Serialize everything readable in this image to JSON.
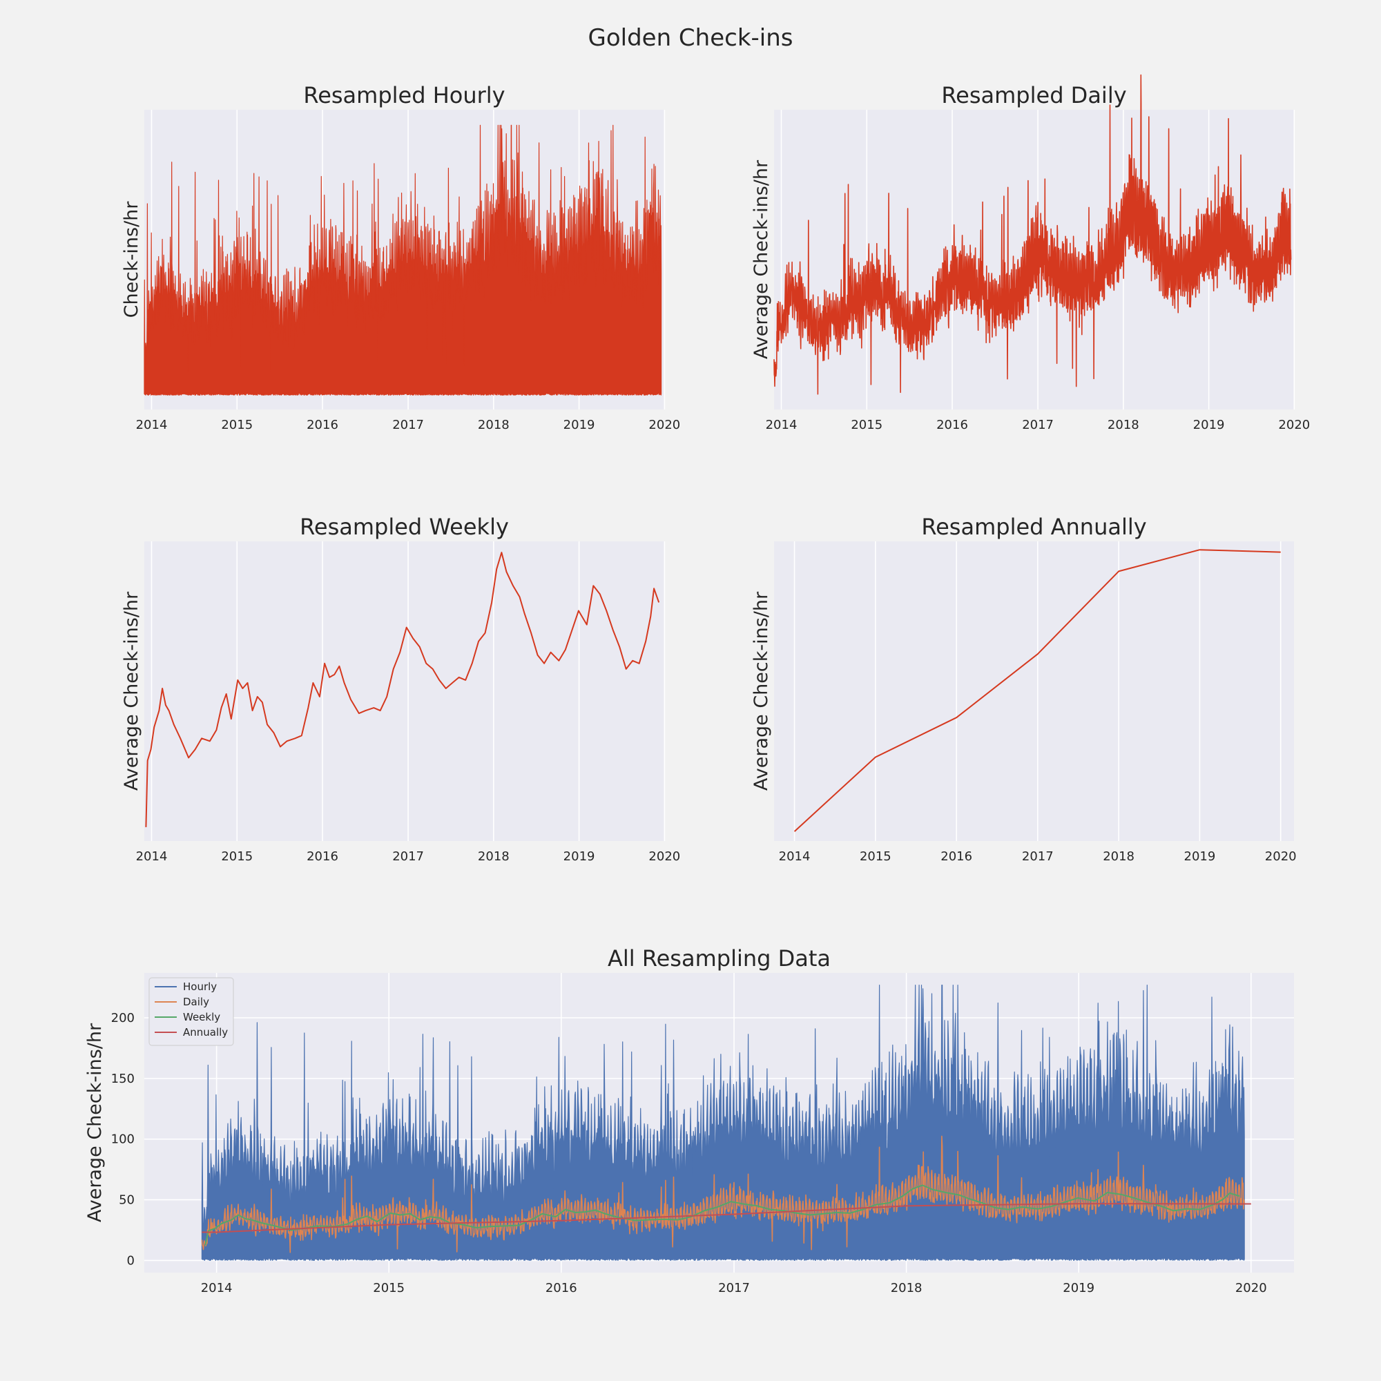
{
  "figure": {
    "title": "Golden Check-ins"
  },
  "colors": {
    "single_series": "#d5391f",
    "hourly": "#4c72b0",
    "daily": "#dd8452",
    "weekly": "#55a868",
    "annually": "#c44e52",
    "axes_bg": "#eaeaf2",
    "grid": "#ffffff"
  },
  "chart_data": [
    {
      "id": "hourly",
      "type": "line",
      "title": "Resampled Hourly",
      "ylabel": "Check-ins/hr",
      "xlabel": "",
      "x_range": [
        "2013-12-01",
        "2019-12-31"
      ],
      "x_ticks": [
        "2014",
        "2015",
        "2016",
        "2017",
        "2018",
        "2019",
        "2020"
      ],
      "y_tick_labels": "hidden",
      "ylim": [
        -12,
        240
      ],
      "grid": true,
      "series": [
        {
          "resample": "H",
          "start": "2013-12-01",
          "end": "2019-12-18",
          "approx_max": 227,
          "approx_min": 0
        }
      ]
    },
    {
      "id": "daily",
      "type": "line",
      "title": "Resampled Daily",
      "ylabel": "Average Check-ins/hr",
      "xlabel": "",
      "x_range": [
        "2013-12-01",
        "2019-12-31"
      ],
      "x_ticks": [
        "2014",
        "2015",
        "2016",
        "2017",
        "2018",
        "2019",
        "2020"
      ],
      "y_tick_labels": "hidden",
      "ylim": [
        2,
        92
      ],
      "grid": true,
      "series": [
        {
          "resample": "D",
          "start": "2013-12-01",
          "end": "2019-12-18"
        }
      ]
    },
    {
      "id": "weekly",
      "type": "line",
      "title": "Resampled Weekly",
      "ylabel": "Average Check-ins/hr",
      "xlabel": "",
      "x_range": [
        "2013-12-01",
        "2019-12-31"
      ],
      "x_ticks": [
        "2014",
        "2015",
        "2016",
        "2017",
        "2018",
        "2019",
        "2020"
      ],
      "y_tick_labels": "hidden",
      "ylim": [
        10,
        64
      ],
      "grid": true,
      "series": [
        {
          "resample": "W",
          "points": [
            [
              "2013-12-08",
              12.5
            ],
            [
              "2013-12-15",
              24.5
            ],
            [
              "2013-12-29",
              26.5
            ],
            [
              "2014-01-12",
              30.5
            ],
            [
              "2014-02-02",
              33.5
            ],
            [
              "2014-02-16",
              37.5
            ],
            [
              "2014-03-02",
              34.5
            ],
            [
              "2014-03-16",
              33.5
            ],
            [
              "2014-04-06",
              31
            ],
            [
              "2014-05-04",
              28.5
            ],
            [
              "2014-06-08",
              25
            ],
            [
              "2014-07-06",
              26.5
            ],
            [
              "2014-08-03",
              28.5
            ],
            [
              "2014-09-07",
              28
            ],
            [
              "2014-10-05",
              30
            ],
            [
              "2014-10-26",
              34
            ],
            [
              "2014-11-16",
              36.5
            ],
            [
              "2014-12-07",
              32
            ],
            [
              "2015-01-04",
              39
            ],
            [
              "2015-01-25",
              37.5
            ],
            [
              "2015-02-15",
              38.5
            ],
            [
              "2015-03-08",
              33.5
            ],
            [
              "2015-03-29",
              36
            ],
            [
              "2015-04-19",
              35
            ],
            [
              "2015-05-10",
              31
            ],
            [
              "2015-06-07",
              29.5
            ],
            [
              "2015-07-05",
              27
            ],
            [
              "2015-08-02",
              28
            ],
            [
              "2015-09-06",
              28.5
            ],
            [
              "2015-10-04",
              29
            ],
            [
              "2015-11-01",
              34
            ],
            [
              "2015-11-22",
              38.5
            ],
            [
              "2015-12-20",
              36
            ],
            [
              "2016-01-10",
              42
            ],
            [
              "2016-01-31",
              39.5
            ],
            [
              "2016-02-21",
              40
            ],
            [
              "2016-03-13",
              41.5
            ],
            [
              "2016-04-03",
              38.5
            ],
            [
              "2016-05-01",
              35.5
            ],
            [
              "2016-06-05",
              33
            ],
            [
              "2016-07-03",
              33.5
            ],
            [
              "2016-08-07",
              34
            ],
            [
              "2016-09-04",
              33.5
            ],
            [
              "2016-10-02",
              36
            ],
            [
              "2016-10-30",
              41
            ],
            [
              "2016-11-27",
              44
            ],
            [
              "2016-12-25",
              48.5
            ],
            [
              "2017-01-22",
              46.5
            ],
            [
              "2017-02-19",
              45
            ],
            [
              "2017-03-19",
              42
            ],
            [
              "2017-04-16",
              41
            ],
            [
              "2017-05-14",
              39
            ],
            [
              "2017-06-11",
              37.5
            ],
            [
              "2017-07-09",
              38.5
            ],
            [
              "2017-08-06",
              39.5
            ],
            [
              "2017-09-03",
              39
            ],
            [
              "2017-10-01",
              42
            ],
            [
              "2017-10-29",
              46
            ],
            [
              "2017-11-26",
              47.5
            ],
            [
              "2017-12-24",
              53
            ],
            [
              "2018-01-14",
              59
            ],
            [
              "2018-02-04",
              62
            ],
            [
              "2018-02-25",
              58.5
            ],
            [
              "2018-03-25",
              56
            ],
            [
              "2018-04-22",
              54
            ],
            [
              "2018-05-13",
              51
            ],
            [
              "2018-06-10",
              47.5
            ],
            [
              "2018-07-08",
              43.5
            ],
            [
              "2018-08-05",
              42
            ],
            [
              "2018-09-02",
              44
            ],
            [
              "2018-10-07",
              42.5
            ],
            [
              "2018-11-04",
              44.5
            ],
            [
              "2018-12-02",
              48
            ],
            [
              "2018-12-30",
              51.5
            ],
            [
              "2019-02-03",
              49
            ],
            [
              "2019-03-03",
              56
            ],
            [
              "2019-03-31",
              54.5
            ],
            [
              "2019-04-28",
              51.5
            ],
            [
              "2019-05-26",
              48
            ],
            [
              "2019-06-23",
              45
            ],
            [
              "2019-07-21",
              41
            ],
            [
              "2019-08-18",
              42.5
            ],
            [
              "2019-09-15",
              42
            ],
            [
              "2019-10-13",
              46
            ],
            [
              "2019-11-03",
              50.5
            ],
            [
              "2019-11-17",
              55.5
            ],
            [
              "2019-12-08",
              53
            ]
          ]
        }
      ]
    },
    {
      "id": "annually",
      "type": "line",
      "title": "Resampled Annually",
      "ylabel": "Average Check-ins/hr",
      "xlabel": "",
      "x_range": [
        "2013-10-01",
        "2020-03-01"
      ],
      "x_ticks": [
        "2014",
        "2015",
        "2016",
        "2017",
        "2018",
        "2019",
        "2020"
      ],
      "y_tick_labels": "hidden",
      "ylim": [
        22.5,
        47.5
      ],
      "grid": true,
      "series": [
        {
          "resample": "A",
          "points": [
            [
              "2014-01-01",
              23.3
            ],
            [
              "2015-01-01",
              29.5
            ],
            [
              "2016-01-01",
              32.8
            ],
            [
              "2017-01-01",
              38.1
            ],
            [
              "2018-01-01",
              45.0
            ],
            [
              "2019-01-01",
              46.8
            ],
            [
              "2020-01-01",
              46.6
            ]
          ]
        }
      ]
    },
    {
      "id": "all",
      "type": "line",
      "title": "All Resampling Data",
      "ylabel": "Average Check-ins/hr",
      "xlabel": "",
      "x_range": [
        "2013-08-01",
        "2020-04-01"
      ],
      "x_ticks": [
        "2014",
        "2015",
        "2016",
        "2017",
        "2018",
        "2019",
        "2020"
      ],
      "y_ticks": [
        0,
        50,
        100,
        150,
        200
      ],
      "ylim": [
        -10,
        237
      ],
      "grid": true,
      "legend": {
        "placement": "upper-left"
      },
      "series": [
        {
          "name": "Hourly",
          "color_key": "hourly",
          "resample": "H"
        },
        {
          "name": "Daily",
          "color_key": "daily",
          "resample": "D"
        },
        {
          "name": "Weekly",
          "color_key": "weekly",
          "resample": "W"
        },
        {
          "name": "Annually",
          "color_key": "annually",
          "resample": "A"
        }
      ]
    }
  ]
}
